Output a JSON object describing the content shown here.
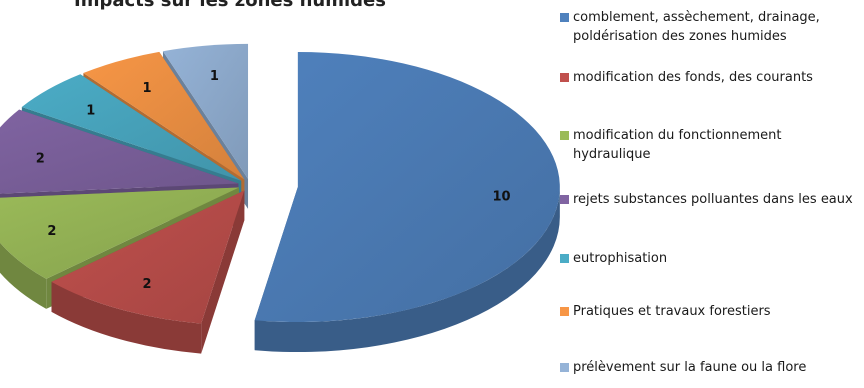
{
  "chart_data": {
    "type": "pie",
    "title": "Impacts sur les zones humides",
    "legend_position": "right",
    "style": "3d-exploded",
    "slices": [
      {
        "label": "comblement, assèchement, drainage, poldérisation des zones humides",
        "value": 10,
        "color": "#4f81bd"
      },
      {
        "label": "modification des fonds, des courants",
        "value": 2,
        "color": "#c0504d"
      },
      {
        "label": "modification du fonctionnement hydraulique",
        "value": 2,
        "color": "#9bbb59"
      },
      {
        "label": "rejets substances polluantes dans les eaux",
        "value": 2,
        "color": "#8064a2"
      },
      {
        "label": "eutrophisation",
        "value": 1,
        "color": "#4bacc6"
      },
      {
        "label": "Pratiques et travaux forestiers",
        "value": 1,
        "color": "#f79646"
      },
      {
        "label": "prélèvement sur la faune ou la flore",
        "value": 1,
        "color": "#95b3d7"
      }
    ]
  }
}
